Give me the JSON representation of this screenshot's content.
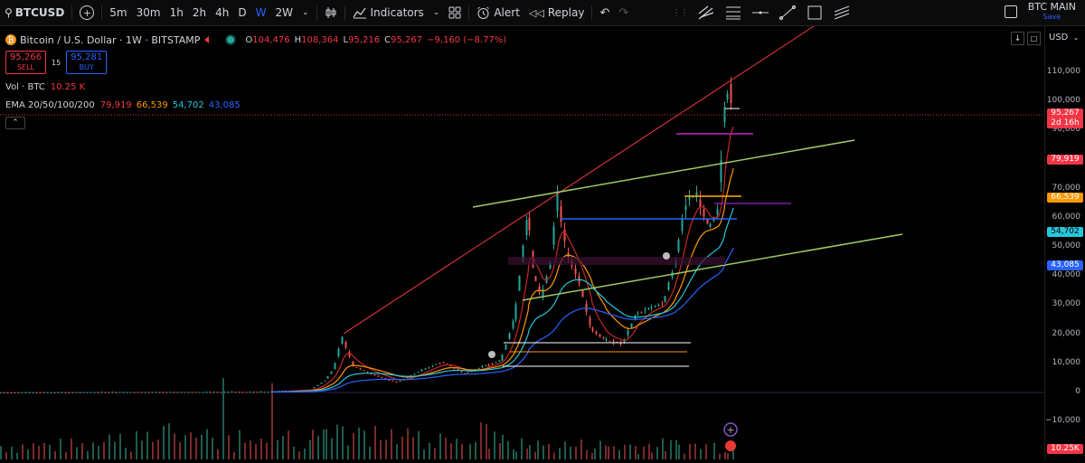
{
  "topbar": {
    "symbol": "BTCUSD",
    "intervals": [
      "5m",
      "30m",
      "1h",
      "2h",
      "4h",
      "D",
      "W",
      "2W"
    ],
    "active_interval": "W",
    "indicators_label": "Indicators",
    "alert_label": "Alert",
    "replay_label": "Replay",
    "layout_title": "BTC MAIN",
    "layout_status": "Save"
  },
  "legend": {
    "title": "Bitcoin / U.S. Dollar · 1W · BITSTAMP",
    "open_label": "O",
    "open": "104,476",
    "high_label": "H",
    "high": "108,364",
    "low_label": "L",
    "low": "95,216",
    "close_label": "C",
    "close": "95,267",
    "change": "−9,160 (−8.77%)",
    "sell_price": "95,266",
    "sell_label": "SELL",
    "spread": "15",
    "buy_price": "95,281",
    "buy_label": "BUY",
    "vol_label": "Vol · BTC",
    "vol_value": "10.25 K",
    "ema_label": "EMA 20/50/100/200",
    "ema_values": [
      "79,919",
      "66,539",
      "54,702",
      "43,085"
    ],
    "ema_colors": [
      "#f23645",
      "#ff9800",
      "#26c6da",
      "#2962ff"
    ]
  },
  "axis": {
    "currency": "USD",
    "ticks": [
      {
        "label": "110,000",
        "v": 110000
      },
      {
        "label": "100,000",
        "v": 100000
      },
      {
        "label": "90,000",
        "v": 90000
      },
      {
        "label": "80,000",
        "v": 80000
      },
      {
        "label": "70,000",
        "v": 70000
      },
      {
        "label": "60,000",
        "v": 60000
      },
      {
        "label": "50,000",
        "v": 50000
      },
      {
        "label": "40,000",
        "v": 40000
      },
      {
        "label": "30,000",
        "v": 30000
      },
      {
        "label": "20,000",
        "v": 20000
      },
      {
        "label": "10,000",
        "v": 10000
      },
      {
        "label": "0",
        "v": 0
      },
      {
        "label": "−10,000",
        "v": -10000
      }
    ],
    "price_tag": {
      "label": "95,267",
      "sub": "2d 16h",
      "color": "#f23645"
    },
    "ema_tags": [
      {
        "label": "79,919",
        "color": "#f23645",
        "text": "#ffffff"
      },
      {
        "label": "66,539",
        "color": "#ff9800",
        "text": "#ffffff"
      },
      {
        "label": "54,702",
        "color": "#26c6da",
        "text": "#000000"
      },
      {
        "label": "43,085",
        "color": "#2962ff",
        "text": "#ffffff"
      }
    ],
    "volume_tag": {
      "label": "10.25K",
      "color": "#f23645"
    }
  },
  "colors": {
    "up": "#26a69a",
    "down": "#ef5350",
    "accent": "#2962ff",
    "trend_green": "#9ccc65",
    "trend_red": "#f23645",
    "level_purple": "#c020c0"
  }
}
